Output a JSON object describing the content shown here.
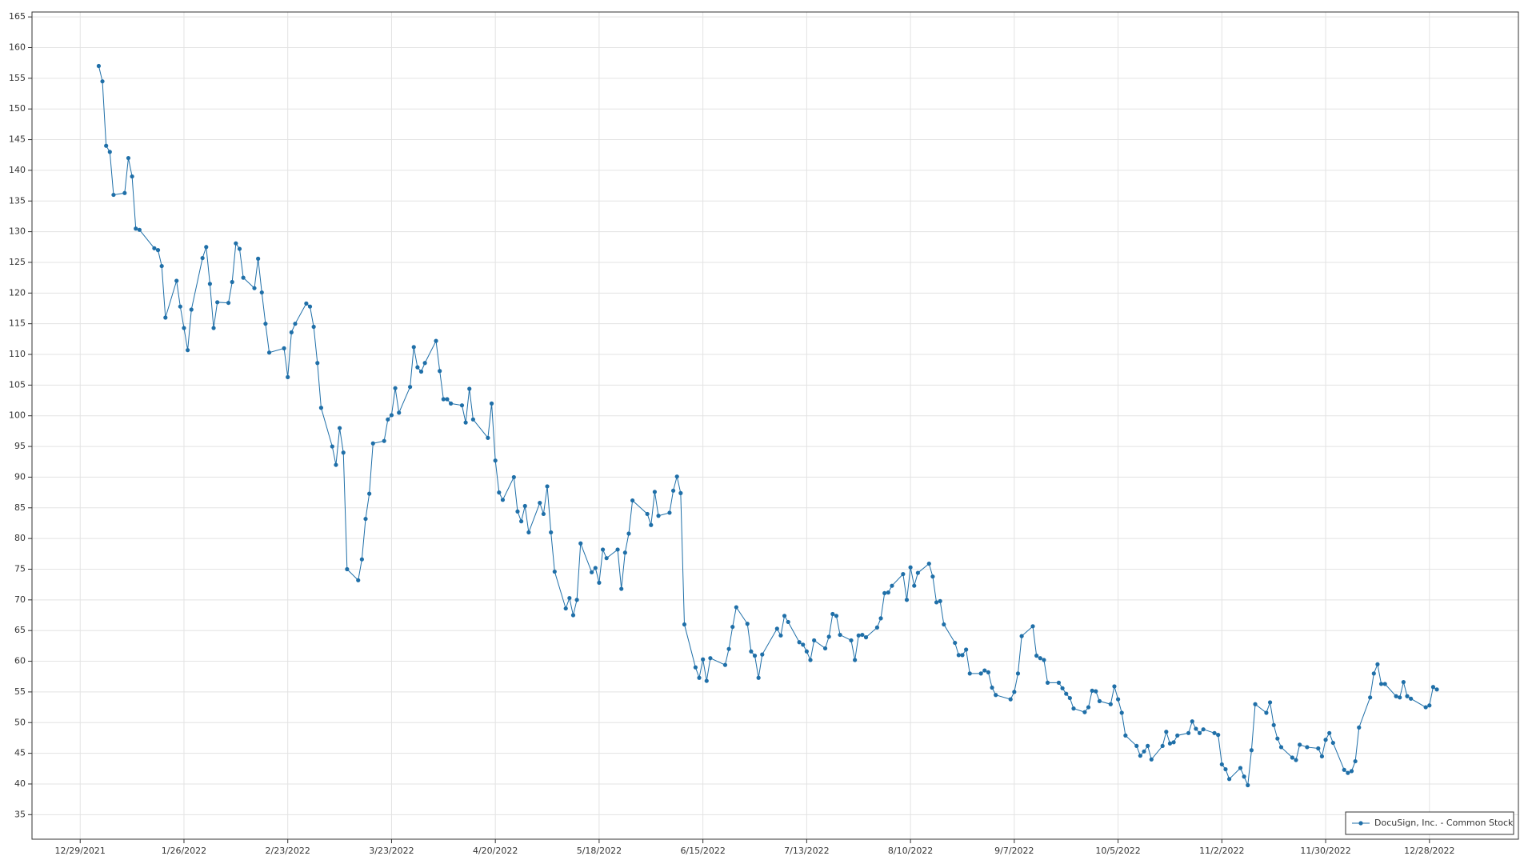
{
  "chart_data": {
    "type": "line",
    "x": [
      "1/3/2022",
      "1/4/2022",
      "1/5/2022",
      "1/6/2022",
      "1/7/2022",
      "1/10/2022",
      "1/11/2022",
      "1/12/2022",
      "1/13/2022",
      "1/14/2022",
      "1/18/2022",
      "1/19/2022",
      "1/20/2022",
      "1/21/2022",
      "1/24/2022",
      "1/25/2022",
      "1/26/2022",
      "1/27/2022",
      "1/28/2022",
      "1/31/2022",
      "2/1/2022",
      "2/2/2022",
      "2/3/2022",
      "2/4/2022",
      "2/7/2022",
      "2/8/2022",
      "2/9/2022",
      "2/10/2022",
      "2/11/2022",
      "2/14/2022",
      "2/15/2022",
      "2/16/2022",
      "2/17/2022",
      "2/18/2022",
      "2/22/2022",
      "2/23/2022",
      "2/24/2022",
      "2/25/2022",
      "2/28/2022",
      "3/1/2022",
      "3/2/2022",
      "3/3/2022",
      "3/4/2022",
      "3/7/2022",
      "3/8/2022",
      "3/9/2022",
      "3/10/2022",
      "3/11/2022",
      "3/14/2022",
      "3/15/2022",
      "3/16/2022",
      "3/17/2022",
      "3/18/2022",
      "3/21/2022",
      "3/22/2022",
      "3/23/2022",
      "3/24/2022",
      "3/25/2022",
      "3/28/2022",
      "3/29/2022",
      "3/30/2022",
      "3/31/2022",
      "4/1/2022",
      "4/4/2022",
      "4/5/2022",
      "4/6/2022",
      "4/7/2022",
      "4/8/2022",
      "4/11/2022",
      "4/12/2022",
      "4/13/2022",
      "4/14/2022",
      "4/18/2022",
      "4/19/2022",
      "4/20/2022",
      "4/21/2022",
      "4/22/2022",
      "4/25/2022",
      "4/26/2022",
      "4/27/2022",
      "4/28/2022",
      "4/29/2022",
      "5/2/2022",
      "5/3/2022",
      "5/4/2022",
      "5/5/2022",
      "5/6/2022",
      "5/9/2022",
      "5/10/2022",
      "5/11/2022",
      "5/12/2022",
      "5/13/2022",
      "5/16/2022",
      "5/17/2022",
      "5/18/2022",
      "5/19/2022",
      "5/20/2022",
      "5/23/2022",
      "5/24/2022",
      "5/25/2022",
      "5/26/2022",
      "5/27/2022",
      "5/31/2022",
      "6/1/2022",
      "6/2/2022",
      "6/3/2022",
      "6/6/2022",
      "6/7/2022",
      "6/8/2022",
      "6/9/2022",
      "6/10/2022",
      "6/13/2022",
      "6/14/2022",
      "6/15/2022",
      "6/16/2022",
      "6/17/2022",
      "6/21/2022",
      "6/22/2022",
      "6/23/2022",
      "6/24/2022",
      "6/27/2022",
      "6/28/2022",
      "6/29/2022",
      "6/30/2022",
      "7/1/2022",
      "7/5/2022",
      "7/6/2022",
      "7/7/2022",
      "7/8/2022",
      "7/11/2022",
      "7/12/2022",
      "7/13/2022",
      "7/14/2022",
      "7/15/2022",
      "7/18/2022",
      "7/19/2022",
      "7/20/2022",
      "7/21/2022",
      "7/22/2022",
      "7/25/2022",
      "7/26/2022",
      "7/27/2022",
      "7/28/2022",
      "7/29/2022",
      "8/1/2022",
      "8/2/2022",
      "8/3/2022",
      "8/4/2022",
      "8/5/2022",
      "8/8/2022",
      "8/9/2022",
      "8/10/2022",
      "8/11/2022",
      "8/12/2022",
      "8/15/2022",
      "8/16/2022",
      "8/17/2022",
      "8/18/2022",
      "8/19/2022",
      "8/22/2022",
      "8/23/2022",
      "8/24/2022",
      "8/25/2022",
      "8/26/2022",
      "8/29/2022",
      "8/30/2022",
      "8/31/2022",
      "9/1/2022",
      "9/2/2022",
      "9/6/2022",
      "9/7/2022",
      "9/8/2022",
      "9/9/2022",
      "9/12/2022",
      "9/13/2022",
      "9/14/2022",
      "9/15/2022",
      "9/16/2022",
      "9/19/2022",
      "9/20/2022",
      "9/21/2022",
      "9/22/2022",
      "9/23/2022",
      "9/26/2022",
      "9/27/2022",
      "9/28/2022",
      "9/29/2022",
      "9/30/2022",
      "10/3/2022",
      "10/4/2022",
      "10/5/2022",
      "10/6/2022",
      "10/7/2022",
      "10/10/2022",
      "10/11/2022",
      "10/12/2022",
      "10/13/2022",
      "10/14/2022",
      "10/17/2022",
      "10/18/2022",
      "10/19/2022",
      "10/20/2022",
      "10/21/2022",
      "10/24/2022",
      "10/25/2022",
      "10/26/2022",
      "10/27/2022",
      "10/28/2022",
      "10/31/2022",
      "11/1/2022",
      "11/2/2022",
      "11/3/2022",
      "11/4/2022",
      "11/7/2022",
      "11/8/2022",
      "11/9/2022",
      "11/10/2022",
      "11/11/2022",
      "11/14/2022",
      "11/15/2022",
      "11/16/2022",
      "11/17/2022",
      "11/18/2022",
      "11/21/2022",
      "11/22/2022",
      "11/23/2022",
      "11/25/2022",
      "11/28/2022",
      "11/29/2022",
      "11/30/2022",
      "12/1/2022",
      "12/2/2022",
      "12/5/2022",
      "12/6/2022",
      "12/7/2022",
      "12/8/2022",
      "12/9/2022",
      "12/12/2022",
      "12/13/2022",
      "12/14/2022",
      "12/15/2022",
      "12/16/2022",
      "12/19/2022",
      "12/20/2022",
      "12/21/2022",
      "12/22/2022",
      "12/23/2022",
      "12/27/2022",
      "12/28/2022",
      "12/29/2022",
      "12/30/2022"
    ],
    "series": [
      {
        "name": "DocuSign, Inc. - Common Stock",
        "color": "#1f6fa8",
        "values": [
          157,
          154.5,
          144,
          143,
          136,
          136.3,
          142,
          139,
          130.5,
          130.3,
          127.3,
          127,
          124.4,
          116,
          122,
          117.8,
          114.3,
          110.7,
          117.3,
          125.7,
          127.5,
          121.5,
          114.3,
          118.5,
          118.4,
          121.8,
          128.1,
          127.2,
          122.5,
          120.8,
          125.6,
          120.1,
          115,
          110.3,
          111,
          106.3,
          113.6,
          115,
          118.3,
          117.8,
          114.5,
          108.6,
          101.3,
          95,
          92,
          98,
          94,
          75,
          73.2,
          76.6,
          83.2,
          87.3,
          95.5,
          95.9,
          99.4,
          100.1,
          104.5,
          100.5,
          104.7,
          111.2,
          107.9,
          107.2,
          108.6,
          112.2,
          107.3,
          102.7,
          102.7,
          102,
          101.7,
          98.9,
          104.4,
          99.4,
          96.4,
          102,
          92.7,
          87.5,
          86.3,
          90,
          84.4,
          82.8,
          85.3,
          81,
          85.8,
          84,
          88.5,
          81,
          74.6,
          68.6,
          70.3,
          67.5,
          70,
          79.2,
          74.5,
          75.2,
          72.8,
          78.2,
          76.8,
          78.2,
          71.8,
          77.7,
          80.8,
          86.2,
          84,
          82.2,
          87.6,
          83.7,
          84.2,
          87.8,
          90.1,
          87.4,
          66,
          59,
          57.3,
          60.3,
          56.8,
          60.5,
          59.4,
          62,
          65.6,
          68.8,
          66.1,
          61.6,
          60.9,
          57.3,
          61.1,
          65.3,
          64.2,
          67.4,
          66.4,
          63.1,
          62.7,
          61.6,
          60.2,
          63.4,
          62.1,
          64,
          67.7,
          67.4,
          64.3,
          63.4,
          60.2,
          64.2,
          64.3,
          63.9,
          65.5,
          67,
          71.1,
          71.2,
          72.3,
          74.2,
          70,
          75.3,
          72.3,
          74.4,
          75.9,
          73.8,
          69.6,
          69.8,
          66,
          63,
          61,
          61,
          61.9,
          58,
          58,
          58.5,
          58.2,
          55.7,
          54.5,
          53.8,
          55,
          58,
          64.1,
          65.7,
          60.9,
          60.5,
          60.2,
          56.5,
          56.5,
          55.6,
          54.7,
          54,
          52.3,
          51.7,
          52.5,
          55.2,
          55.1,
          53.5,
          53,
          55.9,
          53.8,
          51.6,
          47.9,
          46.2,
          44.6,
          45.3,
          46.2,
          44,
          46.2,
          48.5,
          46.6,
          46.8,
          47.9,
          48.3,
          50.2,
          49,
          48.3,
          48.9,
          48.3,
          48,
          43.2,
          42.4,
          40.8,
          42.6,
          41.2,
          39.8,
          45.5,
          53,
          51.6,
          53.3,
          49.6,
          47.4,
          46,
          44.3,
          43.9,
          46.4,
          46,
          45.8,
          44.5,
          47.2,
          48.3,
          46.7,
          42.3,
          41.8,
          42.1,
          43.7,
          49.2,
          54.1,
          58,
          59.5,
          56.3,
          56.3,
          54.3,
          54.1,
          56.6,
          54.3,
          53.9,
          52.5,
          52.8,
          55.8,
          55.4
        ]
      }
    ],
    "xlim": [
      "12/16/2021",
      "1/21/2023"
    ],
    "xticks": [
      "12/29/2021",
      "1/26/2022",
      "2/23/2022",
      "3/23/2022",
      "4/20/2022",
      "5/18/2022",
      "6/15/2022",
      "7/13/2022",
      "8/10/2022",
      "9/7/2022",
      "10/5/2022",
      "11/2/2022",
      "11/30/2022",
      "12/28/2022"
    ],
    "ylim": [
      31,
      165.8
    ],
    "yticks": [
      35,
      40,
      45,
      50,
      55,
      60,
      65,
      70,
      75,
      80,
      85,
      90,
      95,
      100,
      105,
      110,
      115,
      120,
      125,
      130,
      135,
      140,
      145,
      150,
      155,
      160,
      165
    ],
    "grid": true,
    "legend": "lower right"
  }
}
